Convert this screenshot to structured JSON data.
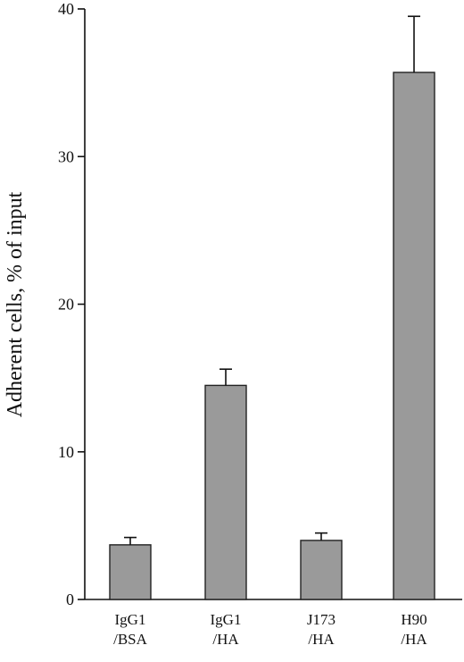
{
  "chart_data": {
    "type": "bar",
    "categories": [
      [
        "IgG1",
        "/BSA"
      ],
      [
        "IgG1",
        "/HA"
      ],
      [
        "J173",
        "/HA"
      ],
      [
        "H90",
        "/HA"
      ]
    ],
    "values": [
      3.7,
      14.5,
      4.0,
      35.7
    ],
    "errors": [
      0.5,
      1.1,
      0.5,
      3.8
    ],
    "title": "",
    "xlabel": "",
    "ylabel": "Adherent cells, % of input",
    "ylim": [
      0,
      40
    ],
    "yticks": [
      0,
      10,
      20,
      30,
      40
    ],
    "grid": false,
    "bar_color": "#9a9a9a"
  }
}
